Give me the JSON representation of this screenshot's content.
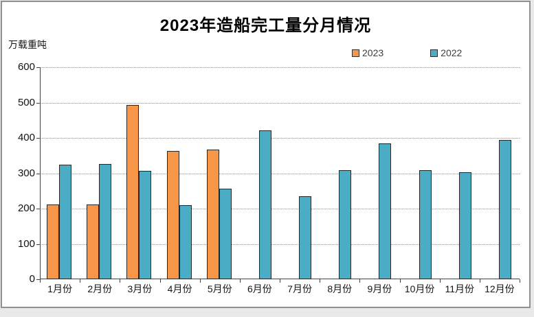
{
  "chart_data": {
    "type": "bar",
    "title": "2023年造船完工量分月情况",
    "ylabel": "万载重吨",
    "xlabel": "",
    "categories": [
      "1月份",
      "2月份",
      "3月份",
      "4月份",
      "5月份",
      "6月份",
      "7月份",
      "8月份",
      "9月份",
      "10月份",
      "11月份",
      "12月份"
    ],
    "series": [
      {
        "name": "2023",
        "color": "#F79646",
        "values": [
          211,
          211,
          493,
          363,
          367,
          null,
          null,
          null,
          null,
          null,
          null,
          null
        ]
      },
      {
        "name": "2022",
        "color": "#4BACC6",
        "values": [
          325,
          327,
          307,
          210,
          256,
          421,
          235,
          309,
          384,
          308,
          303,
          395
        ]
      }
    ],
    "ylim": [
      0,
      600
    ],
    "yticks": [
      0,
      100,
      200,
      300,
      400,
      500,
      600
    ],
    "grid": "horizontal-dotted",
    "legend_position": "top-right-above-plot",
    "colors": {
      "bar_border": "#262626",
      "axis": "#404040",
      "gridline": "#8f8f8f",
      "frame_border": "#909090",
      "background": "#ffffff",
      "page_background": "#e9e9e9"
    }
  }
}
